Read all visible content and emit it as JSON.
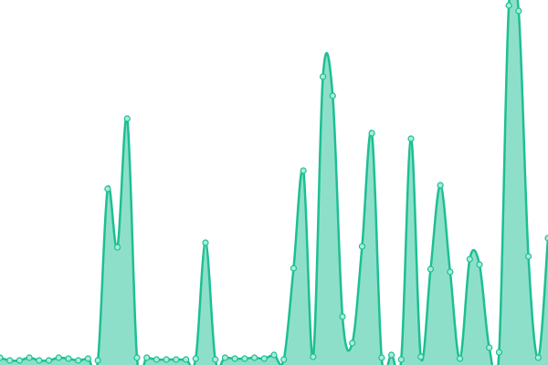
{
  "chart_data": {
    "type": "area",
    "color": "#1dbf93",
    "values": [
      8,
      5,
      5,
      8,
      5,
      5,
      8,
      7,
      5,
      7,
      5,
      193,
      129,
      270,
      8,
      8,
      6,
      6,
      6,
      6,
      7,
      134,
      6,
      8,
      7,
      7,
      8,
      7,
      11,
      6,
      106,
      213,
      9,
      316,
      295,
      53,
      24,
      130,
      254,
      8,
      11,
      6,
      248,
      9,
      105,
      197,
      102,
      7,
      116,
      110,
      19,
      14,
      394,
      388,
      119,
      8,
      139
    ],
    "ylim": [
      0,
      400
    ]
  }
}
